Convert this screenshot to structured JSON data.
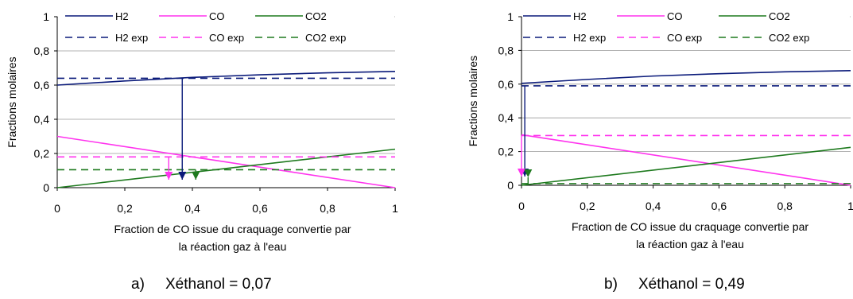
{
  "colors": {
    "H2": "#0a1a7a",
    "CO": "#ff33ee",
    "CO2": "#1e7a1e",
    "grid": "#9a9a9a",
    "axis": "#000000"
  },
  "chart_data": [
    {
      "type": "line",
      "caption_letter": "a)",
      "caption_text": "Xéthanol = 0,07",
      "xlabel_line1": "Fraction de CO issue du craquage convertie par",
      "xlabel_line2": "la réaction gaz à l'eau",
      "ylabel": "Fractions molaires",
      "xlim": [
        0,
        1
      ],
      "ylim": [
        0,
        1
      ],
      "x_ticks": [
        "0",
        "0,2",
        "0,4",
        "0,6",
        "0,8",
        "1"
      ],
      "y_ticks": [
        "0",
        "0,2",
        "0,4",
        "0,6",
        "0,8",
        "1"
      ],
      "grid": "horizontal",
      "legend": "top",
      "legend_labels": [
        "H2",
        "CO",
        "CO2",
        "H2 exp",
        "CO exp",
        "CO2 exp"
      ],
      "series": [
        {
          "name": "H2",
          "style": "solid",
          "color_key": "H2",
          "x": [
            0,
            0.2,
            0.4,
            0.6,
            0.8,
            1
          ],
          "y": [
            0.6,
            0.624,
            0.645,
            0.66,
            0.672,
            0.68
          ]
        },
        {
          "name": "CO",
          "style": "solid",
          "color_key": "CO",
          "x": [
            0,
            1
          ],
          "y": [
            0.3,
            0
          ]
        },
        {
          "name": "CO2",
          "style": "solid",
          "color_key": "CO2",
          "x": [
            0,
            1
          ],
          "y": [
            0,
            0.225
          ]
        },
        {
          "name": "H2 exp",
          "style": "dashed",
          "color_key": "H2",
          "x": [
            0,
            1
          ],
          "y": [
            0.64,
            0.64
          ]
        },
        {
          "name": "CO exp",
          "style": "dashed",
          "color_key": "CO",
          "x": [
            0,
            1
          ],
          "y": [
            0.18,
            0.18
          ]
        },
        {
          "name": "CO2 exp",
          "style": "dashed",
          "color_key": "CO2",
          "x": [
            0,
            1
          ],
          "y": [
            0.105,
            0.105
          ]
        }
      ],
      "arrows": [
        {
          "color_key": "CO",
          "x": 0.33,
          "from_y": 0.18,
          "to_y": 0
        },
        {
          "color_key": "H2",
          "x": 0.37,
          "from_y": 0.64,
          "to_y": 0
        },
        {
          "color_key": "CO2",
          "x": 0.41,
          "from_y": 0.105,
          "to_y": 0
        }
      ]
    },
    {
      "type": "line",
      "caption_letter": "b)",
      "caption_text": "Xéthanol = 0,49",
      "xlabel_line1": "Fraction de CO issue du craquage convertie par",
      "xlabel_line2": "la réaction gaz à l'eau",
      "ylabel": "Fractions molaires",
      "xlim": [
        0,
        1
      ],
      "ylim": [
        0,
        1
      ],
      "x_ticks": [
        "0",
        "0,2",
        "0,4",
        "0,6",
        "0,8",
        "1"
      ],
      "y_ticks": [
        "0",
        "0,2",
        "0,4",
        "0,6",
        "0,8",
        "1"
      ],
      "grid": "horizontal",
      "legend": "top",
      "legend_labels": [
        "H2",
        "CO",
        "CO2",
        "H2 exp",
        "CO exp",
        "CO2 exp"
      ],
      "series": [
        {
          "name": "H2",
          "style": "solid",
          "color_key": "H2",
          "x": [
            0,
            0.2,
            0.4,
            0.6,
            0.8,
            1
          ],
          "y": [
            0.605,
            0.628,
            0.648,
            0.662,
            0.673,
            0.68
          ]
        },
        {
          "name": "CO",
          "style": "solid",
          "color_key": "CO",
          "x": [
            0,
            1
          ],
          "y": [
            0.3,
            0
          ]
        },
        {
          "name": "CO2",
          "style": "solid",
          "color_key": "CO2",
          "x": [
            0,
            1
          ],
          "y": [
            0,
            0.225
          ]
        },
        {
          "name": "H2 exp",
          "style": "dashed",
          "color_key": "H2",
          "x": [
            0,
            1
          ],
          "y": [
            0.59,
            0.59
          ]
        },
        {
          "name": "CO exp",
          "style": "dashed",
          "color_key": "CO",
          "x": [
            0,
            1
          ],
          "y": [
            0.295,
            0.295
          ]
        },
        {
          "name": "CO2 exp",
          "style": "dashed",
          "color_key": "CO2",
          "x": [
            0,
            1
          ],
          "y": [
            0.01,
            0.01
          ]
        }
      ],
      "arrows": [
        {
          "color_key": "H2",
          "x": 0.01,
          "from_y": 0.59,
          "to_y": 0.005
        },
        {
          "color_key": "CO",
          "x": 0.0,
          "from_y": 0.295,
          "to_y": 0.005
        },
        {
          "color_key": "CO2",
          "x": 0.02,
          "from_y": 0.01,
          "to_y": 0.0
        }
      ]
    }
  ]
}
